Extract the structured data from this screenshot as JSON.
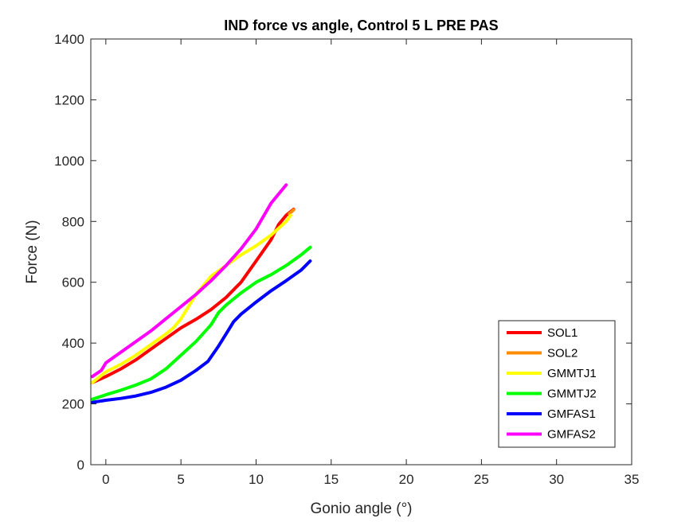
{
  "chart_data": {
    "type": "line",
    "title": "IND force vs angle, Control 5 L PRE PAS",
    "xlabel": "Gonio angle (°)",
    "ylabel": "Force (N)",
    "xlim": [
      -1,
      35
    ],
    "ylim": [
      0,
      1400
    ],
    "xticks": [
      0,
      5,
      10,
      15,
      20,
      25,
      30,
      35
    ],
    "yticks": [
      0,
      200,
      400,
      600,
      800,
      1000,
      1200,
      1400
    ],
    "grid": false,
    "legend_position": "bottom-right",
    "series": [
      {
        "name": "SOL1",
        "color": "#ff0000",
        "points": [
          [
            -0.9,
            270
          ],
          [
            0,
            290
          ],
          [
            1,
            315
          ],
          [
            2,
            345
          ],
          [
            3,
            380
          ],
          [
            4,
            415
          ],
          [
            5,
            450
          ],
          [
            6,
            478
          ],
          [
            7,
            510
          ],
          [
            8,
            550
          ],
          [
            9,
            600
          ],
          [
            10,
            670
          ],
          [
            11,
            740
          ],
          [
            11.5,
            790
          ],
          [
            12,
            820
          ],
          [
            12.5,
            840
          ]
        ]
      },
      {
        "name": "SOL2",
        "color": "#ff8c00",
        "points": [
          [
            12.2,
            825
          ],
          [
            12.5,
            838
          ]
        ]
      },
      {
        "name": "GMMTJ1",
        "color": "#ffff00",
        "points": [
          [
            -0.9,
            270
          ],
          [
            0,
            305
          ],
          [
            1,
            330
          ],
          [
            2,
            360
          ],
          [
            3,
            395
          ],
          [
            4,
            430
          ],
          [
            4.5,
            450
          ],
          [
            5,
            480
          ],
          [
            6,
            560
          ],
          [
            7,
            620
          ],
          [
            8,
            655
          ],
          [
            9,
            690
          ],
          [
            10,
            720
          ],
          [
            11,
            755
          ],
          [
            12,
            800
          ],
          [
            12.3,
            820
          ]
        ]
      },
      {
        "name": "GMMTJ2",
        "color": "#00ff00",
        "points": [
          [
            -0.9,
            215
          ],
          [
            0,
            230
          ],
          [
            1,
            245
          ],
          [
            2,
            262
          ],
          [
            3,
            282
          ],
          [
            4,
            315
          ],
          [
            5,
            360
          ],
          [
            6,
            405
          ],
          [
            7,
            460
          ],
          [
            7.5,
            500
          ],
          [
            8,
            525
          ],
          [
            9,
            565
          ],
          [
            10,
            600
          ],
          [
            11,
            625
          ],
          [
            12,
            655
          ],
          [
            13,
            690
          ],
          [
            13.6,
            715
          ]
        ]
      },
      {
        "name": "GMFAS1",
        "color": "#0000ff",
        "points": [
          [
            -0.9,
            205
          ],
          [
            0,
            212
          ],
          [
            1,
            218
          ],
          [
            2,
            226
          ],
          [
            3,
            238
          ],
          [
            4,
            255
          ],
          [
            5,
            278
          ],
          [
            6,
            310
          ],
          [
            6.8,
            340
          ],
          [
            7.5,
            390
          ],
          [
            8,
            430
          ],
          [
            8.5,
            470
          ],
          [
            9,
            495
          ],
          [
            10,
            535
          ],
          [
            11,
            572
          ],
          [
            12,
            605
          ],
          [
            13,
            640
          ],
          [
            13.6,
            670
          ]
        ]
      },
      {
        "name": "GMFAS2",
        "color": "#ff00ff",
        "points": [
          [
            -0.9,
            290
          ],
          [
            -0.3,
            310
          ],
          [
            0,
            335
          ],
          [
            1,
            370
          ],
          [
            2,
            405
          ],
          [
            3,
            440
          ],
          [
            4,
            480
          ],
          [
            5,
            520
          ],
          [
            6,
            560
          ],
          [
            7,
            605
          ],
          [
            8,
            655
          ],
          [
            9,
            710
          ],
          [
            10,
            775
          ],
          [
            11,
            860
          ],
          [
            12,
            920
          ]
        ]
      }
    ]
  }
}
